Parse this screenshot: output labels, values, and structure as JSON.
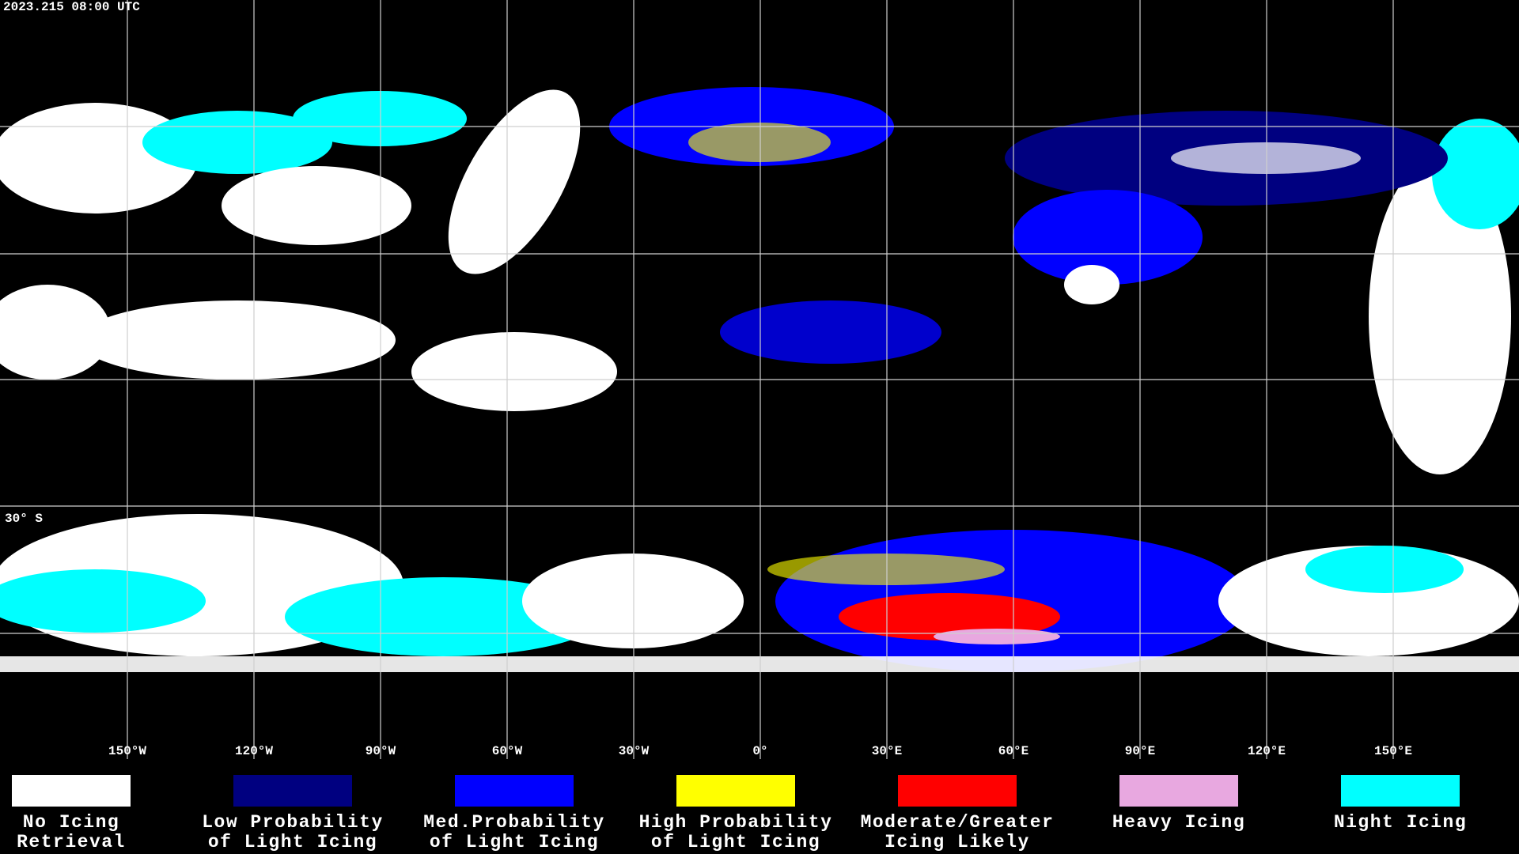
{
  "header": {
    "title": "2023.215 08:00 UTC"
  },
  "map": {
    "longitude_labels": [
      "150°W",
      "120°W",
      "90°W",
      "60°W",
      "30°W",
      "0°",
      "30°E",
      "60°E",
      "90°E",
      "120°E",
      "150°E"
    ],
    "latitude_labels": [
      "30° S"
    ]
  },
  "legend": {
    "items": [
      {
        "color": "#ffffff",
        "lines": [
          "No Icing",
          "Retrieval"
        ]
      },
      {
        "color": "#000080",
        "lines": [
          "Low Probability",
          "of Light Icing"
        ]
      },
      {
        "color": "#0000ff",
        "lines": [
          "Med.Probability",
          "of Light Icing"
        ]
      },
      {
        "color": "#ffff00",
        "lines": [
          "High Probability",
          "of Light Icing"
        ]
      },
      {
        "color": "#ff0000",
        "lines": [
          "Moderate/Greater",
          "Icing Likely"
        ]
      },
      {
        "color": "#e8a8e0",
        "lines": [
          "Heavy Icing"
        ]
      },
      {
        "color": "#00ffff",
        "lines": [
          "Night Icing"
        ]
      }
    ]
  }
}
